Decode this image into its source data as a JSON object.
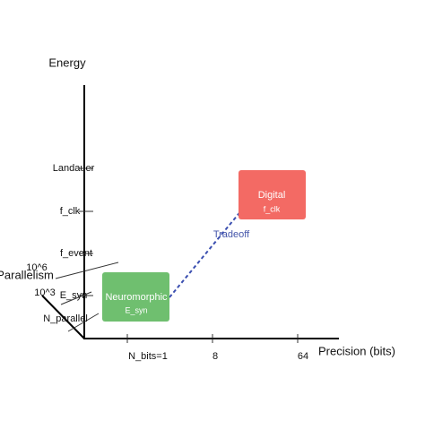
{
  "axes": {
    "y": {
      "label": "Energy",
      "ticks": [
        "Landauer",
        "f_clk",
        "f_event",
        "E_syn"
      ]
    },
    "x": {
      "label": "Precision (bits)",
      "ticks": [
        "N_bits=1",
        "8",
        "64"
      ]
    },
    "z": {
      "label": "Parallelism",
      "ticks": [
        "10^6",
        "10^3",
        "N_parallel"
      ]
    }
  },
  "nodes": [
    {
      "label": "Digital",
      "sublabel": "f_clk"
    },
    {
      "label": "Neuromorphic",
      "sublabel": "E_syn"
    }
  ],
  "edges": [
    {
      "label": "Tradeoff"
    }
  ]
}
